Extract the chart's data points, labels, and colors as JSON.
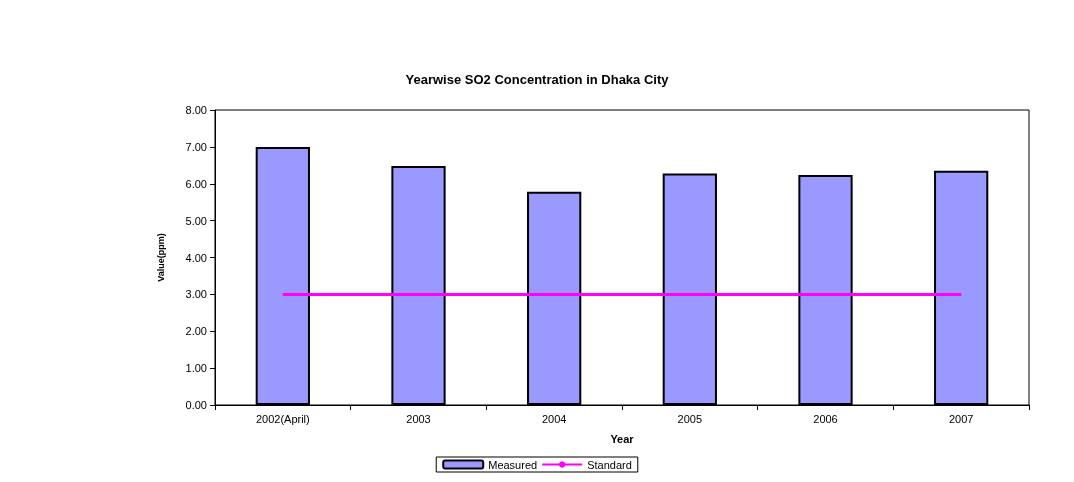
{
  "chart_data": {
    "type": "bar",
    "title": "Yearwise SO2 Concentration in Dhaka City",
    "xlabel": "Year",
    "ylabel": "Value(ppm)",
    "categories": [
      "2002(April)",
      "2003",
      "2004",
      "2005",
      "2006",
      "2007"
    ],
    "series": [
      {
        "name": "Measured",
        "color": "#9999ff",
        "values": [
          7.0,
          6.48,
          5.78,
          6.28,
          6.24,
          6.35
        ]
      },
      {
        "name": "Standard",
        "type": "line",
        "color": "#ff00ff",
        "values": [
          3,
          3,
          3,
          3,
          3,
          3
        ]
      }
    ],
    "ylim": [
      0,
      8
    ],
    "yticks": [
      {
        "value": 0,
        "label": "0.00"
      },
      {
        "value": 1,
        "label": "1.00"
      },
      {
        "value": 2,
        "label": "2.00"
      },
      {
        "value": 3,
        "label": "3.00"
      },
      {
        "value": 4,
        "label": "4.00"
      },
      {
        "value": 5,
        "label": "5.00"
      },
      {
        "value": 6,
        "label": "6.00"
      },
      {
        "value": 7,
        "label": "7.00"
      },
      {
        "value": 8,
        "label": "8.00"
      }
    ],
    "grid": false,
    "legend": "bottom",
    "marker": "none"
  }
}
